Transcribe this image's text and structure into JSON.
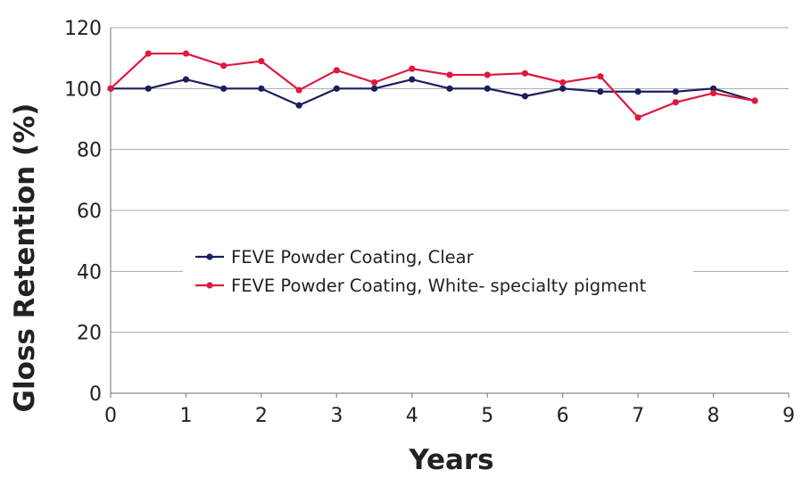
{
  "chart_data": {
    "type": "line",
    "title": "",
    "xlabel": "Years",
    "ylabel": "Gloss Retention (%)",
    "xlim": [
      0,
      9
    ],
    "ylim": [
      0,
      120
    ],
    "x_ticks": [
      "0",
      "1",
      "2",
      "3",
      "4",
      "5",
      "6",
      "7",
      "8",
      "9"
    ],
    "y_ticks": [
      "0",
      "20",
      "40",
      "60",
      "80",
      "100",
      "120"
    ],
    "grid": "horizontal",
    "legend_position": "center-left",
    "series": [
      {
        "name": "FEVE Powder Coating, Clear",
        "color": "#1a1f5c",
        "x": [
          0,
          0.5,
          1,
          1.5,
          2,
          2.5,
          3,
          3.5,
          4,
          4.5,
          5,
          5.5,
          6,
          6.5,
          7,
          7.5,
          8,
          8.55
        ],
        "y": [
          100,
          100,
          103,
          100,
          100,
          94.5,
          100,
          100,
          103,
          100,
          100,
          97.5,
          100,
          99,
          99,
          99,
          100,
          96
        ]
      },
      {
        "name": "FEVE Powder Coating, White- specialty pigment",
        "color": "#e0173f",
        "x": [
          0,
          0.5,
          1,
          1.5,
          2,
          2.5,
          3,
          3.5,
          4,
          4.5,
          5,
          5.5,
          6,
          6.5,
          7,
          7.5,
          8,
          8.55
        ],
        "y": [
          100,
          111.5,
          111.5,
          107.5,
          109,
          99.5,
          106,
          102,
          106.5,
          104.5,
          104.5,
          105,
          102,
          104,
          90.5,
          95.5,
          98.5,
          96
        ]
      }
    ]
  }
}
